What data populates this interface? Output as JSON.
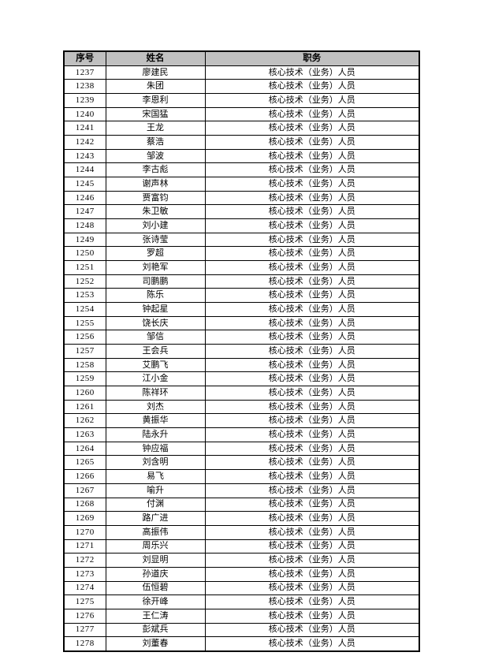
{
  "page": {
    "background": "#ffffff"
  },
  "table": {
    "columns": [
      "序号",
      "姓名",
      "职务"
    ],
    "header_bg": "#c0c0c0",
    "border_color": "#000000",
    "rows": [
      [
        "1237",
        "廖建民",
        "核心技术（业务）人员"
      ],
      [
        "1238",
        "朱团",
        "核心技术（业务）人员"
      ],
      [
        "1239",
        "李恩利",
        "核心技术（业务）人员"
      ],
      [
        "1240",
        "宋国猛",
        "核心技术（业务）人员"
      ],
      [
        "1241",
        "王龙",
        "核心技术（业务）人员"
      ],
      [
        "1242",
        "蔡浩",
        "核心技术（业务）人员"
      ],
      [
        "1243",
        "邹波",
        "核心技术（业务）人员"
      ],
      [
        "1244",
        "李古彪",
        "核心技术（业务）人员"
      ],
      [
        "1245",
        "谢声林",
        "核心技术（业务）人员"
      ],
      [
        "1246",
        "贾富钧",
        "核心技术（业务）人员"
      ],
      [
        "1247",
        "朱卫敏",
        "核心技术（业务）人员"
      ],
      [
        "1248",
        "刘小建",
        "核心技术（业务）人员"
      ],
      [
        "1249",
        "张诗莹",
        "核心技术（业务）人员"
      ],
      [
        "1250",
        "罗超",
        "核心技术（业务）人员"
      ],
      [
        "1251",
        "刘艳军",
        "核心技术（业务）人员"
      ],
      [
        "1252",
        "司鹏鹏",
        "核心技术（业务）人员"
      ],
      [
        "1253",
        "陈乐",
        "核心技术（业务）人员"
      ],
      [
        "1254",
        "钟起星",
        "核心技术（业务）人员"
      ],
      [
        "1255",
        "饶长庆",
        "核心技术（业务）人员"
      ],
      [
        "1256",
        "邹信",
        "核心技术（业务）人员"
      ],
      [
        "1257",
        "王会兵",
        "核心技术（业务）人员"
      ],
      [
        "1258",
        "艾鹏飞",
        "核心技术（业务）人员"
      ],
      [
        "1259",
        "江小金",
        "核心技术（业务）人员"
      ],
      [
        "1260",
        "陈祥环",
        "核心技术（业务）人员"
      ],
      [
        "1261",
        "刘杰",
        "核心技术（业务）人员"
      ],
      [
        "1262",
        "黄振华",
        "核心技术（业务）人员"
      ],
      [
        "1263",
        "陆永升",
        "核心技术（业务）人员"
      ],
      [
        "1264",
        "钟应福",
        "核心技术（业务）人员"
      ],
      [
        "1265",
        "刘含明",
        "核心技术（业务）人员"
      ],
      [
        "1266",
        "易飞",
        "核心技术（业务）人员"
      ],
      [
        "1267",
        "喻升",
        "核心技术（业务）人员"
      ],
      [
        "1268",
        "付渊",
        "核心技术（业务）人员"
      ],
      [
        "1269",
        "路广进",
        "核心技术（业务）人员"
      ],
      [
        "1270",
        "高振伟",
        "核心技术（业务）人员"
      ],
      [
        "1271",
        "周乐兴",
        "核心技术（业务）人员"
      ],
      [
        "1272",
        "刘显明",
        "核心技术（业务）人员"
      ],
      [
        "1273",
        "孙道庆",
        "核心技术（业务）人员"
      ],
      [
        "1274",
        "伍恒碧",
        "核心技术（业务）人员"
      ],
      [
        "1275",
        "徐开峰",
        "核心技术（业务）人员"
      ],
      [
        "1276",
        "王仁涛",
        "核心技术（业务）人员"
      ],
      [
        "1277",
        "彭斌兵",
        "核心技术（业务）人员"
      ],
      [
        "1278",
        "刘董春",
        "核心技术（业务）人员"
      ]
    ]
  }
}
